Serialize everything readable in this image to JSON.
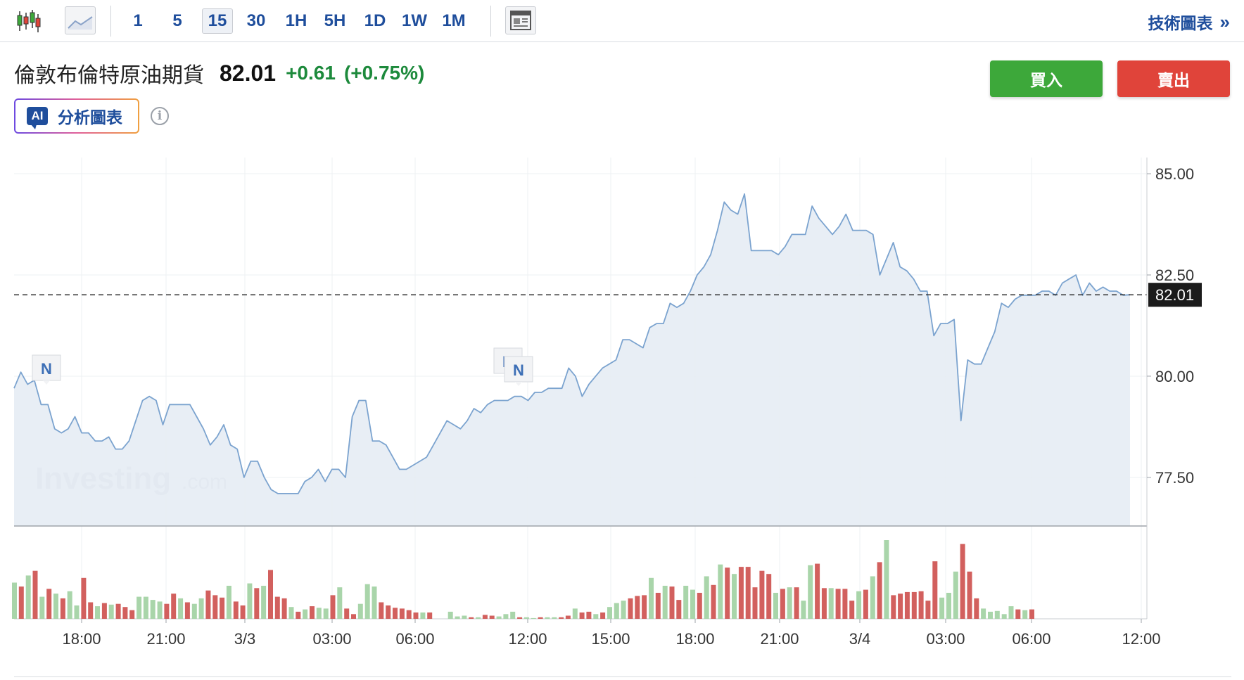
{
  "toolbar": {
    "intervals": [
      "1",
      "5",
      "15",
      "30",
      "1H",
      "5H",
      "1D",
      "1W",
      "1M"
    ],
    "selected_interval": "15",
    "candlestick_icon": "candlestick-chart-icon",
    "area_icon": "area-chart-icon",
    "layout_icon": "layout-grid-icon",
    "tech_chart_label": "技術圖表",
    "tech_chart_chevron": "»"
  },
  "instrument": {
    "name": "倫敦布倫特原油期貨",
    "price": "82.01",
    "change": "+0.61",
    "change_pct": "(+0.75%)",
    "direction_icon": "up-arrow-icon",
    "up_color": "#1d8a3c"
  },
  "actions": {
    "buy_label": "買入",
    "sell_label": "賣出",
    "buy_color": "#3da83a",
    "sell_color": "#e0443a"
  },
  "ai": {
    "badge": "AI",
    "label": "分析圖表",
    "info_glyph": "i"
  },
  "watermark": {
    "brand": "Investing",
    "suffix": ".com"
  },
  "chart_data": {
    "type": "area",
    "ylim": [
      76.3,
      85.4
    ],
    "y_ticks": [
      "85.00",
      "82.50",
      "80.00",
      "77.50"
    ],
    "y_tick_values": [
      85.0,
      82.5,
      80.0,
      77.5
    ],
    "x_tick_labels": [
      "18:00",
      "21:00",
      "3/3",
      "03:00",
      "06:00",
      "12:00",
      "15:00",
      "18:00",
      "21:00",
      "3/4",
      "03:00",
      "06:00",
      "12:00"
    ],
    "last_price_label": "82.01",
    "last_price": 82.01,
    "news_markers": [
      "N",
      "N",
      "N"
    ],
    "price_series": [
      79.7,
      80.1,
      79.8,
      79.9,
      79.3,
      79.3,
      78.7,
      78.6,
      78.7,
      79.0,
      78.6,
      78.6,
      78.4,
      78.4,
      78.5,
      78.2,
      78.2,
      78.4,
      78.9,
      79.4,
      79.5,
      79.4,
      78.8,
      79.3,
      79.3,
      79.3,
      79.3,
      79.0,
      78.7,
      78.3,
      78.5,
      78.8,
      78.3,
      78.2,
      77.5,
      77.9,
      77.9,
      77.5,
      77.2,
      77.1,
      77.1,
      77.1,
      77.1,
      77.4,
      77.5,
      77.7,
      77.4,
      77.7,
      77.7,
      77.5,
      79.0,
      79.4,
      79.4,
      78.4,
      78.4,
      78.3,
      78.0,
      77.7,
      77.7,
      77.8,
      77.9,
      78.0,
      78.3,
      78.6,
      78.9,
      78.8,
      78.7,
      78.9,
      79.2,
      79.1,
      79.3,
      79.4,
      79.4,
      79.4,
      79.5,
      79.5,
      79.4,
      79.6,
      79.6,
      79.7,
      79.7,
      79.7,
      80.2,
      80.0,
      79.5,
      79.8,
      80.0,
      80.2,
      80.3,
      80.4,
      80.9,
      80.9,
      80.8,
      80.7,
      81.2,
      81.3,
      81.3,
      81.8,
      81.7,
      81.8,
      82.1,
      82.5,
      82.7,
      83.0,
      83.6,
      84.3,
      84.1,
      84.0,
      84.5,
      83.1,
      83.1,
      83.1,
      83.1,
      83.0,
      83.2,
      83.5,
      83.5,
      83.5,
      84.2,
      83.9,
      83.7,
      83.5,
      83.7,
      84.0,
      83.6,
      83.6,
      83.6,
      83.5,
      82.5,
      82.9,
      83.3,
      82.7,
      82.6,
      82.4,
      82.1,
      82.1,
      81.0,
      81.3,
      81.3,
      81.4,
      78.9,
      80.4,
      80.3,
      80.3,
      80.7,
      81.1,
      81.8,
      81.7,
      81.9,
      82.0,
      82.0,
      82.0,
      82.1,
      82.1,
      82.0,
      82.3,
      82.4,
      82.5,
      82.0,
      82.3,
      82.1,
      82.2,
      82.1,
      82.1,
      82.0,
      82.01
    ],
    "volume_series": [
      {
        "v": 46,
        "up": true
      },
      {
        "v": 41,
        "up": false
      },
      {
        "v": 55,
        "up": true
      },
      {
        "v": 61,
        "up": false
      },
      {
        "v": 28,
        "up": true
      },
      {
        "v": 38,
        "up": false
      },
      {
        "v": 32,
        "up": true
      },
      {
        "v": 26,
        "up": false
      },
      {
        "v": 35,
        "up": true
      },
      {
        "v": 17,
        "up": true
      },
      {
        "v": 52,
        "up": false
      },
      {
        "v": 21,
        "up": false
      },
      {
        "v": 16,
        "up": true
      },
      {
        "v": 20,
        "up": false
      },
      {
        "v": 18,
        "up": true
      },
      {
        "v": 19,
        "up": false
      },
      {
        "v": 15,
        "up": false
      },
      {
        "v": 11,
        "up": false
      },
      {
        "v": 28,
        "up": true
      },
      {
        "v": 28,
        "up": true
      },
      {
        "v": 24,
        "up": true
      },
      {
        "v": 22,
        "up": true
      },
      {
        "v": 19,
        "up": false
      },
      {
        "v": 32,
        "up": false
      },
      {
        "v": 26,
        "up": true
      },
      {
        "v": 21,
        "up": false
      },
      {
        "v": 19,
        "up": true
      },
      {
        "v": 26,
        "up": true
      },
      {
        "v": 36,
        "up": false
      },
      {
        "v": 30,
        "up": false
      },
      {
        "v": 27,
        "up": false
      },
      {
        "v": 42,
        "up": true
      },
      {
        "v": 22,
        "up": false
      },
      {
        "v": 17,
        "up": false
      },
      {
        "v": 45,
        "up": true
      },
      {
        "v": 39,
        "up": false
      },
      {
        "v": 42,
        "up": true
      },
      {
        "v": 62,
        "up": false
      },
      {
        "v": 28,
        "up": false
      },
      {
        "v": 26,
        "up": false
      },
      {
        "v": 15,
        "up": true
      },
      {
        "v": 9,
        "up": false
      },
      {
        "v": 12,
        "up": true
      },
      {
        "v": 16,
        "up": false
      },
      {
        "v": 14,
        "up": true
      },
      {
        "v": 13,
        "up": true
      },
      {
        "v": 30,
        "up": false
      },
      {
        "v": 40,
        "up": true
      },
      {
        "v": 13,
        "up": false
      },
      {
        "v": 6,
        "up": false
      },
      {
        "v": 19,
        "up": true
      },
      {
        "v": 44,
        "up": true
      },
      {
        "v": 41,
        "up": true
      },
      {
        "v": 21,
        "up": false
      },
      {
        "v": 17,
        "up": false
      },
      {
        "v": 14,
        "up": false
      },
      {
        "v": 13,
        "up": false
      },
      {
        "v": 11,
        "up": false
      },
      {
        "v": 8,
        "up": false
      },
      {
        "v": 8,
        "up": true
      },
      {
        "v": 8,
        "up": false
      },
      {
        "v": 0,
        "up": true
      },
      {
        "v": 0,
        "up": true
      },
      {
        "v": 9,
        "up": true
      },
      {
        "v": 3,
        "up": true
      },
      {
        "v": 4,
        "up": true
      },
      {
        "v": 2,
        "up": false
      },
      {
        "v": 2,
        "up": true
      },
      {
        "v": 5,
        "up": false
      },
      {
        "v": 4,
        "up": false
      },
      {
        "v": 3,
        "up": true
      },
      {
        "v": 6,
        "up": true
      },
      {
        "v": 9,
        "up": true
      },
      {
        "v": 2,
        "up": false
      },
      {
        "v": 2,
        "up": true
      },
      {
        "v": 1,
        "up": true
      },
      {
        "v": 2,
        "up": false
      },
      {
        "v": 2,
        "up": true
      },
      {
        "v": 2,
        "up": true
      },
      {
        "v": 2,
        "up": false
      },
      {
        "v": 4,
        "up": false
      },
      {
        "v": 13,
        "up": true
      },
      {
        "v": 8,
        "up": false
      },
      {
        "v": 9,
        "up": false
      },
      {
        "v": 6,
        "up": true
      },
      {
        "v": 8,
        "up": false
      },
      {
        "v": 15,
        "up": true
      },
      {
        "v": 20,
        "up": true
      },
      {
        "v": 23,
        "up": true
      },
      {
        "v": 26,
        "up": false
      },
      {
        "v": 29,
        "up": false
      },
      {
        "v": 30,
        "up": false
      },
      {
        "v": 52,
        "up": true
      },
      {
        "v": 33,
        "up": false
      },
      {
        "v": 42,
        "up": true
      },
      {
        "v": 41,
        "up": false
      },
      {
        "v": 24,
        "up": false
      },
      {
        "v": 42,
        "up": true
      },
      {
        "v": 37,
        "up": true
      },
      {
        "v": 33,
        "up": false
      },
      {
        "v": 54,
        "up": true
      },
      {
        "v": 43,
        "up": false
      },
      {
        "v": 69,
        "up": true
      },
      {
        "v": 65,
        "up": false
      },
      {
        "v": 57,
        "up": true
      },
      {
        "v": 66,
        "up": false
      },
      {
        "v": 66,
        "up": false
      },
      {
        "v": 40,
        "up": false
      },
      {
        "v": 61,
        "up": false
      },
      {
        "v": 57,
        "up": false
      },
      {
        "v": 33,
        "up": true
      },
      {
        "v": 38,
        "up": false
      },
      {
        "v": 40,
        "up": true
      },
      {
        "v": 40,
        "up": false
      },
      {
        "v": 23,
        "up": true
      },
      {
        "v": 68,
        "up": true
      },
      {
        "v": 70,
        "up": false
      },
      {
        "v": 39,
        "up": false
      },
      {
        "v": 39,
        "up": true
      },
      {
        "v": 38,
        "up": false
      },
      {
        "v": 38,
        "up": false
      },
      {
        "v": 23,
        "up": false
      },
      {
        "v": 35,
        "up": true
      },
      {
        "v": 37,
        "up": false
      },
      {
        "v": 54,
        "up": true
      },
      {
        "v": 72,
        "up": false
      },
      {
        "v": 100,
        "up": true
      },
      {
        "v": 30,
        "up": false
      },
      {
        "v": 32,
        "up": false
      },
      {
        "v": 34,
        "up": false
      },
      {
        "v": 34,
        "up": false
      },
      {
        "v": 35,
        "up": false
      },
      {
        "v": 23,
        "up": false
      },
      {
        "v": 73,
        "up": false
      },
      {
        "v": 27,
        "up": true
      },
      {
        "v": 33,
        "up": true
      },
      {
        "v": 60,
        "up": true
      },
      {
        "v": 95,
        "up": false
      },
      {
        "v": 60,
        "up": false
      },
      {
        "v": 26,
        "up": false
      },
      {
        "v": 13,
        "up": true
      },
      {
        "v": 9,
        "up": true
      },
      {
        "v": 10,
        "up": true
      },
      {
        "v": 6,
        "up": true
      },
      {
        "v": 16,
        "up": true
      },
      {
        "v": 12,
        "up": false
      },
      {
        "v": 11,
        "up": true
      },
      {
        "v": 12,
        "up": false
      }
    ]
  }
}
